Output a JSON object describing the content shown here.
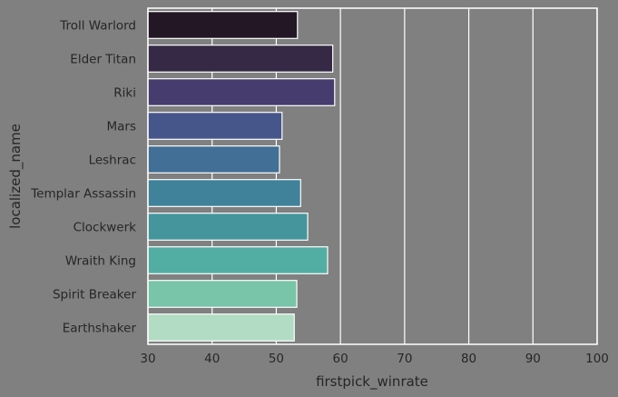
{
  "chart_data": {
    "type": "bar",
    "orientation": "horizontal",
    "title": "",
    "xlabel": "firstpick_winrate",
    "ylabel": "localized_name",
    "xlim": [
      30,
      100
    ],
    "xticks": [
      30,
      40,
      50,
      60,
      70,
      80,
      90,
      100
    ],
    "grid": true,
    "legend": null,
    "categories": [
      "Troll Warlord",
      "Elder Titan",
      "Riki",
      "Mars",
      "Leshrac",
      "Templar Assassin",
      "Clockwerk",
      "Wraith King",
      "Spirit Breaker",
      "Earthshaker"
    ],
    "values": [
      53.3,
      58.8,
      59.1,
      50.9,
      50.5,
      53.8,
      54.9,
      58.0,
      53.2,
      52.8
    ],
    "colors": [
      "#231726",
      "#352945",
      "#463D6E",
      "#47568A",
      "#416F95",
      "#3F8299",
      "#44969C",
      "#52AEA2",
      "#78C5A9",
      "#B2DCC3"
    ]
  },
  "style": {
    "background": "#808080",
    "grid_color": "#FFFFFF",
    "text_color": "#262626"
  }
}
